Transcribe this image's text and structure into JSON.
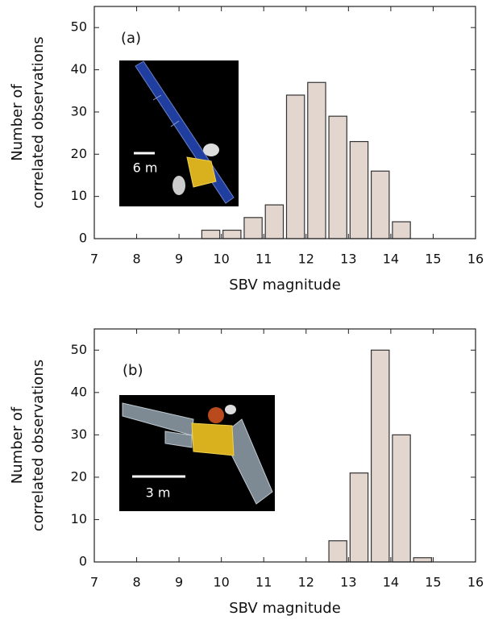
{
  "chart_data": [
    {
      "type": "histogram",
      "panel_label": "(a)",
      "scale_label": "6 m",
      "xlabel": "SBV magnitude",
      "ylabel": [
        "Number of",
        "correlated observations"
      ],
      "bins": [
        9.5,
        10,
        10.5,
        11,
        11.5,
        12,
        12.5,
        13,
        13.5,
        14,
        14.5
      ],
      "values": [
        2,
        2,
        5,
        8,
        34,
        37,
        29,
        23,
        16,
        4
      ],
      "color": "#e2d6cf",
      "xlim": [
        7,
        16
      ],
      "xticks": [
        7,
        8,
        9,
        10,
        11,
        12,
        13,
        14,
        15,
        16
      ],
      "ylim": [
        0,
        55
      ],
      "yticks": [
        0,
        10,
        20,
        30,
        40,
        50
      ]
    },
    {
      "type": "histogram",
      "panel_label": "(b)",
      "scale_label": "3 m",
      "xlabel": "SBV magnitude",
      "ylabel": [
        "Number of",
        "correlated observations"
      ],
      "bins": [
        12.5,
        13,
        13.5,
        14,
        14.5,
        15
      ],
      "values": [
        5,
        21,
        50,
        30,
        1
      ],
      "color": "#e2d6cf",
      "xlim": [
        7,
        16
      ],
      "xticks": [
        7,
        8,
        9,
        10,
        11,
        12,
        13,
        14,
        15,
        16
      ],
      "ylim": [
        0,
        55
      ],
      "yticks": [
        0,
        10,
        20,
        30,
        40,
        50
      ]
    }
  ]
}
